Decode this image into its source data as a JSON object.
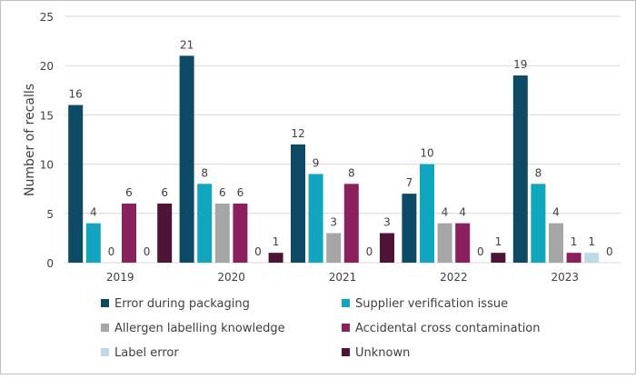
{
  "chart_data": {
    "type": "bar",
    "title": "",
    "xlabel": "",
    "ylabel": "Number of recalls",
    "ylim": [
      0,
      25
    ],
    "yticks": [
      0,
      5,
      10,
      15,
      20,
      25
    ],
    "grid": true,
    "legend_position": "bottom",
    "categories": [
      "2019",
      "2020",
      "2021",
      "2022",
      "2023"
    ],
    "series": [
      {
        "name": "Error during packaging",
        "color": "#0c4a66",
        "values": [
          16,
          21,
          12,
          7,
          19
        ]
      },
      {
        "name": "Supplier verification issue",
        "color": "#12a5bf",
        "values": [
          4,
          8,
          9,
          10,
          8
        ]
      },
      {
        "name": "Allergen labelling knowledge",
        "color": "#a6a6a6",
        "values": [
          0,
          6,
          3,
          4,
          4
        ]
      },
      {
        "name": "Accidental cross contamination",
        "color": "#8a215e",
        "values": [
          6,
          6,
          8,
          4,
          1
        ]
      },
      {
        "name": "Label error",
        "color": "#bcdbe6",
        "values": [
          0,
          0,
          0,
          0,
          1
        ]
      },
      {
        "name": "Unknown",
        "color": "#4e1437",
        "values": [
          6,
          1,
          3,
          1,
          0
        ]
      }
    ]
  }
}
